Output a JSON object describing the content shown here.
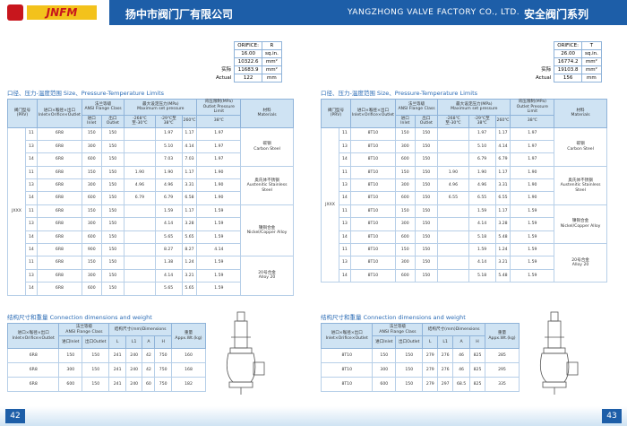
{
  "header": {
    "logo": "JNFM",
    "company_cn": "扬中市阀门厂有限公司",
    "company_en": "YANGZHONG VALVE FACTORY CO., LTD.",
    "series_cn": "安全阀门系列"
  },
  "pages": [
    {
      "orifice": {
        "label": "ORIFICE:",
        "letter": "R",
        "area_in": "16.00",
        "unit_in": "sq.in.",
        "area_mm": "10322.6",
        "unit_mm": "mm²",
        "actual_cn": "实际",
        "actual_area": "11683.9",
        "unit_actual": "mm²",
        "actual_en": "Actual",
        "diameter": "122",
        "unit_d": "mm"
      },
      "limits_title": "口径、压力-温度范围 Size、Pressure-Temperature Limits",
      "limits_headers": {
        "model": "阀门型号(PRV)",
        "size_cn": "进口×喉径×出口",
        "size_en": "Inlet×Orifice×Outlet",
        "flange_cn": "法兰等级",
        "flange_en": "ANSI Flange Class",
        "inlet": "进口Inlet",
        "outlet": "出口Outlet",
        "pressure_cn": "最大设定压力(MPa)",
        "pressure_en": "Maximum set pressure",
        "t1": "-268℃至-30℃",
        "t2": "-29℃至38℃",
        "t3": "260℃",
        "back_cn": "背压限制(MPa)",
        "back_en": "Outlet Pressure Limit",
        "t4": "38℃",
        "material_cn": "材料",
        "material_en": "Materials"
      },
      "model": "JXXX",
      "groups": [
        {
          "material_cn": "碳钢",
          "material_en": "Carbon Steel",
          "rows": [
            [
              "11",
              "6R8",
              "150",
              "150",
              null,
              "1.97",
              "1.17",
              "1.97"
            ],
            [
              "13",
              "6R8",
              "300",
              "150",
              null,
              "5.10",
              "4.14",
              "1.97"
            ],
            [
              "14",
              "6R8",
              "600",
              "150",
              null,
              "7.03",
              "7.03",
              "1.97"
            ]
          ]
        },
        {
          "material_cn": "奥氏体不锈钢",
          "material_en": "Austenitic Stainless Steel",
          "rows": [
            [
              "11",
              "6R8",
              "150",
              "150",
              "1.90",
              "1.90",
              "1.17",
              "1.90"
            ],
            [
              "13",
              "6R8",
              "300",
              "150",
              "4.96",
              "4.96",
              "3.31",
              "1.90"
            ],
            [
              "14",
              "6R8",
              "600",
              "150",
              "6.79",
              "6.79",
              "6.58",
              "1.90"
            ]
          ]
        },
        {
          "material_cn": "镍铜合金",
          "material_en": "Nickel/Copper Alloy",
          "rows": [
            [
              "11",
              "6R8",
              "150",
              "150",
              null,
              "1.59",
              "1.17",
              "1.59"
            ],
            [
              "13",
              "6R8",
              "300",
              "150",
              null,
              "4.14",
              "3.28",
              "1.59"
            ],
            [
              "14",
              "6R8",
              "600",
              "150",
              null,
              "5.65",
              "5.65",
              "1.59"
            ],
            [
              "14",
              "6R8",
              "900",
              "150",
              null,
              "8.27",
              "8.27",
              "4.14"
            ]
          ]
        },
        {
          "material_cn": "20号合金",
          "material_en": "Alloy 20",
          "rows": [
            [
              "11",
              "6R8",
              "150",
              "150",
              null,
              "1.38",
              "1.24",
              "1.59"
            ],
            [
              "13",
              "6R8",
              "300",
              "150",
              null,
              "4.14",
              "3.21",
              "1.59"
            ],
            [
              "14",
              "6R8",
              "600",
              "150",
              null,
              "5.65",
              "5.65",
              "1.59"
            ]
          ]
        }
      ],
      "dims_title": "结构尺寸和重量 Connection dimensions and weight",
      "dims_headers": {
        "size_cn": "进口×喉径×出口",
        "size_en": "Inlet×Orifice×Outlet",
        "flange_cn": "法兰等级",
        "flange_en": "ANSI Flange Class",
        "inlet": "进口Inlet",
        "outlet": "出口Outlet",
        "dims": "结构尺寸(mm)Dimensions",
        "L": "L",
        "L1": "L1",
        "A": "A",
        "H": "H",
        "weight_cn": "重量",
        "weight_en": "Appx.Wt.(kg)"
      },
      "dims_rows": [
        [
          "6R8",
          "150",
          "150",
          "241",
          "240",
          "42",
          "750",
          "160"
        ],
        [
          "6R8",
          "300",
          "150",
          "241",
          "240",
          "42",
          "750",
          "168"
        ],
        [
          "6R8",
          "600",
          "150",
          "241",
          "240",
          "60",
          "750",
          "182"
        ]
      ],
      "page_number": "42"
    },
    {
      "orifice": {
        "label": "ORIFICE:",
        "letter": "T",
        "area_in": "26.00",
        "unit_in": "sq.in.",
        "area_mm": "16774.2",
        "unit_mm": "mm²",
        "actual_cn": "实际",
        "actual_area": "19103.8",
        "unit_actual": "mm²",
        "actual_en": "Actual",
        "diameter": "156",
        "unit_d": "mm"
      },
      "limits_title": "口径、压力-温度范围 Size、Pressure-Temperature Limits",
      "limits_headers": {
        "model": "阀门型号(PRV)",
        "size_cn": "进口×喉径×出口",
        "size_en": "Inlet×Orifice×Outlet",
        "flange_cn": "法兰等级",
        "flange_en": "ANSI Flange Class",
        "inlet": "进口Inlet",
        "outlet": "出口Outlet",
        "pressure_cn": "最大设定压力(MPa)",
        "pressure_en": "Maximum set pressure",
        "t1": "-268℃至-30℃",
        "t2": "-29℃至38℃",
        "t3": "260℃",
        "back_cn": "背压限制(MPa)",
        "back_en": "Outlet Pressure Limit",
        "t4": "38℃",
        "material_cn": "材料",
        "material_en": "Materials"
      },
      "model": "JXXX",
      "groups": [
        {
          "material_cn": "碳钢",
          "material_en": "Carbon Steel",
          "rows": [
            [
              "11",
              "8T10",
              "150",
              "150",
              null,
              "1.97",
              "1.17",
              "1.97"
            ],
            [
              "13",
              "8T10",
              "300",
              "150",
              null,
              "5.10",
              "4.14",
              "1.97"
            ],
            [
              "14",
              "8T10",
              "600",
              "150",
              null,
              "6.79",
              "6.79",
              "1.97"
            ]
          ]
        },
        {
          "material_cn": "奥氏体不锈钢",
          "material_en": "Austenitic Stainless Steel",
          "rows": [
            [
              "11",
              "8T10",
              "150",
              "150",
              "1.90",
              "1.90",
              "1.17",
              "1.90"
            ],
            [
              "13",
              "8T10",
              "300",
              "150",
              "4.96",
              "4.96",
              "3.31",
              "1.90"
            ],
            [
              "14",
              "8T10",
              "600",
              "150",
              "6.55",
              "6.55",
              "6.55",
              "1.90"
            ]
          ]
        },
        {
          "material_cn": "镍铜合金",
          "material_en": "Nickel/Copper Alloy",
          "rows": [
            [
              "11",
              "8T10",
              "150",
              "150",
              null,
              "1.59",
              "1.17",
              "1.59"
            ],
            [
              "13",
              "8T10",
              "300",
              "150",
              null,
              "4.14",
              "3.28",
              "1.59"
            ],
            [
              "14",
              "8T10",
              "600",
              "150",
              null,
              "5.18",
              "5.48",
              "1.59"
            ]
          ]
        },
        {
          "material_cn": "20号合金",
          "material_en": "Alloy 20",
          "rows": [
            [
              "11",
              "8T10",
              "150",
              "150",
              null,
              "1.59",
              "1.24",
              "1.59"
            ],
            [
              "13",
              "8T10",
              "300",
              "150",
              null,
              "4.14",
              "3.21",
              "1.59"
            ],
            [
              "14",
              "8T10",
              "600",
              "150",
              null,
              "5.18",
              "5.48",
              "1.59"
            ]
          ]
        }
      ],
      "dims_title": "结构尺寸和重量 Connection dimensions and weight",
      "dims_headers": {
        "size_cn": "进口×喉径×出口",
        "size_en": "Inlet×Orifice×Outlet",
        "flange_cn": "法兰等级",
        "flange_en": "ANSI Flange Class",
        "inlet": "进口Inlet",
        "outlet": "出口Outlet",
        "dims": "结构尺寸(mm)Dimensions",
        "L": "L",
        "L1": "L1",
        "A": "A",
        "H": "H",
        "weight_cn": "重量",
        "weight_en": "Appx.Wt.(kg)"
      },
      "dims_rows": [
        [
          "8T10",
          "150",
          "150",
          "279",
          "276",
          "46",
          "825",
          "285"
        ],
        [
          "8T10",
          "300",
          "150",
          "279",
          "276",
          "46",
          "825",
          "295"
        ],
        [
          "8T10",
          "600",
          "150",
          "279",
          "297",
          "68.5",
          "825",
          "335"
        ]
      ],
      "page_number": "43"
    }
  ]
}
